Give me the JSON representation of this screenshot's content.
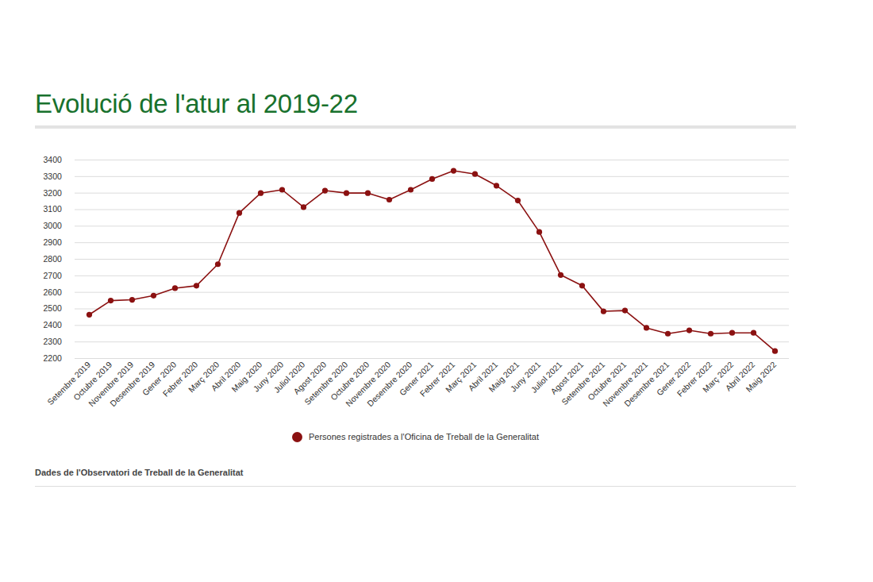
{
  "chart_data": {
    "type": "line",
    "title": "Evolució de l'atur al 2019-22",
    "caption": "Dades de l'Observatori de Treball de la Generalitat",
    "categories": [
      "Setembre 2019",
      "Octubre 2019",
      "Novembre 2019",
      "Desembre 2019",
      "Gener 2020",
      "Febrer 2020",
      "Març 2020",
      "Abril 2020",
      "Maig 2020",
      "Juny 2020",
      "Juliol 2020",
      "Agost 2020",
      "Setembre 2020",
      "Octubre 2020",
      "Novembre 2020",
      "Desembre 2020",
      "Gener 2021",
      "Febrer 2021",
      "Març 2021",
      "Abril 2021",
      "Maig 2021",
      "Juny 2021",
      "Juliol 2021",
      "Agost 2021",
      "Setembre 2021",
      "Octubre 2021",
      "Novembre 2021",
      "Desembre 2021",
      "Gener 2022",
      "Febrer 2022",
      "Març 2022",
      "Abril 2022",
      "Maig 2022"
    ],
    "series": [
      {
        "name": "Persones registrades a l'Oficina de Treball de la Generalitat",
        "color": "#8b1111",
        "marker": "circle",
        "values": [
          2465,
          2550,
          2555,
          2580,
          2625,
          2640,
          2770,
          3080,
          3200,
          3220,
          3115,
          3215,
          3200,
          3200,
          3160,
          3220,
          3285,
          3335,
          3315,
          3245,
          3155,
          2965,
          2705,
          2640,
          2485,
          2490,
          2385,
          2350,
          2370,
          2350,
          2355,
          2355,
          2245
        ]
      }
    ],
    "ylim": [
      2200,
      3400
    ],
    "yticks": [
      2200,
      2300,
      2400,
      2500,
      2600,
      2700,
      2800,
      2900,
      3000,
      3100,
      3200,
      3300,
      3400
    ],
    "grid": true,
    "legend": "bottom"
  }
}
